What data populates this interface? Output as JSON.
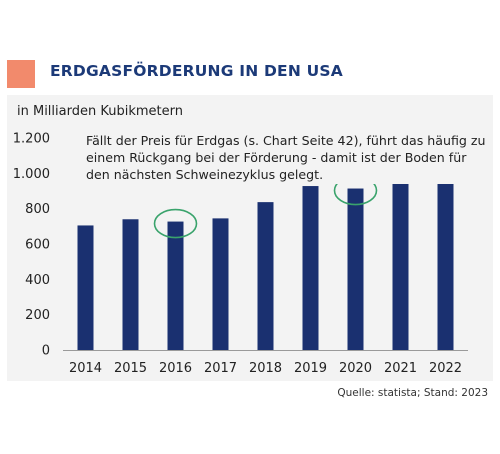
{
  "header": {
    "title": "ERDGASFÖRDERUNG IN DEN USA"
  },
  "unit_label": "in Milliarden Kubikmetern",
  "annotation": "Fällt der Preis für Erdgas (s. Chart Seite 42), führt das häufig zu einem Rückgang bei der Förderung - damit ist der Boden für den nächsten Schweinezyklus gelegt.",
  "source": "Quelle: statista; Stand: 2023",
  "colors": {
    "bar": "#1a3070",
    "accent": "#f28a6c",
    "highlight": "#3aa36c",
    "panel": "#f3f3f3"
  },
  "chart_data": {
    "type": "bar",
    "categories": [
      "2014",
      "2015",
      "2016",
      "2017",
      "2018",
      "2019",
      "2020",
      "2021",
      "2022"
    ],
    "values": [
      705,
      740,
      727,
      745,
      837,
      928,
      914,
      942,
      978
    ],
    "ylabel": "in Milliarden Kubikmetern",
    "ylim": [
      0,
      1200
    ],
    "yticks": [
      0,
      200,
      400,
      600,
      800,
      1000,
      1200
    ],
    "ytick_labels": [
      "0",
      "200",
      "400",
      "600",
      "800",
      "1.000",
      "1.200"
    ],
    "grid": false,
    "highlighted_categories": [
      "2016",
      "2020"
    ]
  }
}
